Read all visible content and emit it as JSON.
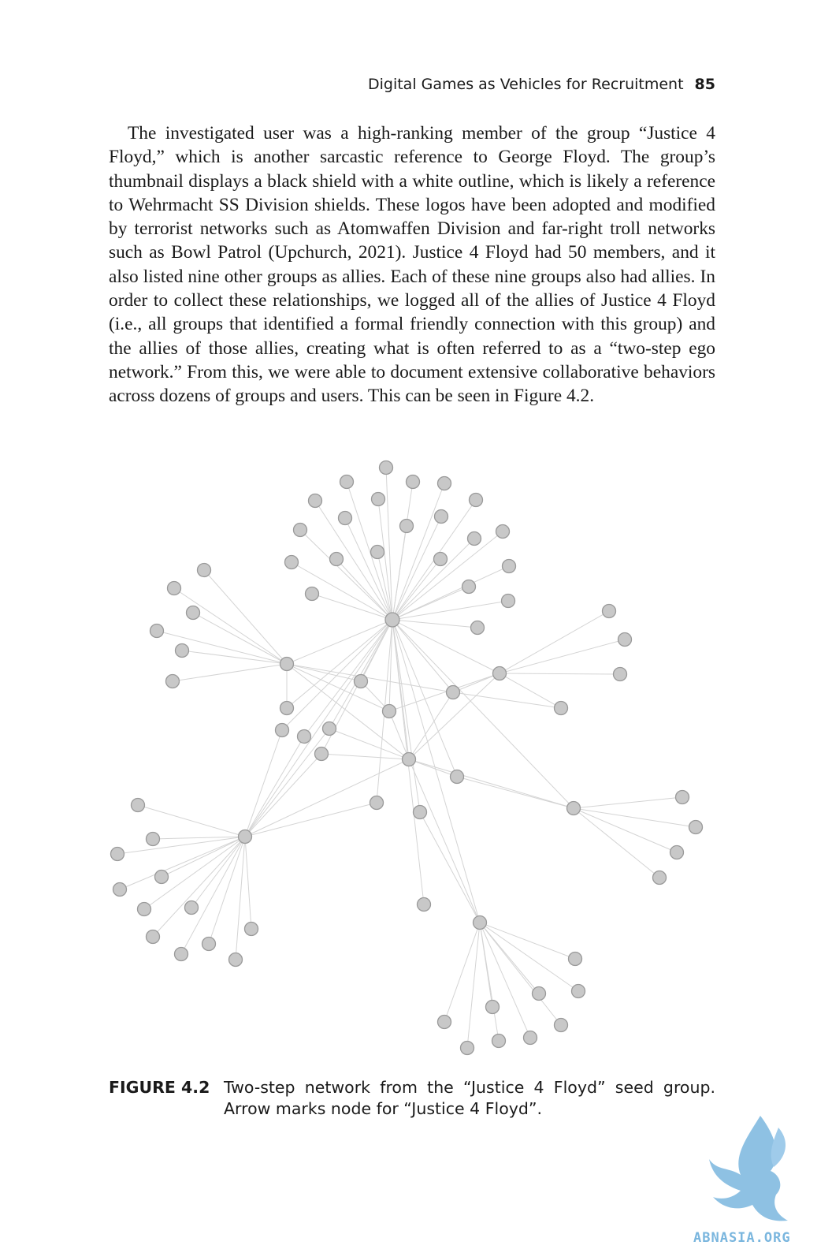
{
  "header": {
    "title": "Digital Games as Vehicles for Recruitment",
    "page_number": "85"
  },
  "paragraph": "The investigated user was a high-ranking member of the group “Justice 4 Floyd,” which is another sarcastic reference to George Floyd. The group’s thumbnail displays a black shield with a white outline, which is likely a reference to Wehrmacht SS Division shields. These logos have been adopted and modified by terrorist networks such as Atomwaffen Division and far-right troll networks such as Bowl Patrol (Upchurch, 2021). Justice 4 Floyd had 50 members, and it also listed nine other groups as allies. Each of these nine groups also had allies. In order to collect these relationships, we logged all of the allies of Justice 4 Floyd (i.e., all groups that identified a formal friendly connection with this group) and the allies of those allies, creating what is often referred to as a “two-step ego network.” From this, we were able to document extensive collaborative behaviors across dozens of groups and users. This can be seen in Figure 4.2.",
  "figure": {
    "label": "FIGURE 4.2",
    "caption": "Two-step network from the “Justice 4 Floyd” seed group. Arrow marks node for “Justice 4 Floyd”.",
    "colors": {
      "node_fill": "#c8c8c8",
      "node_stroke": "#9a9a9a",
      "edge": "#d4d4d4"
    }
  },
  "watermark": {
    "text": "ABNASIA.ORG"
  }
}
